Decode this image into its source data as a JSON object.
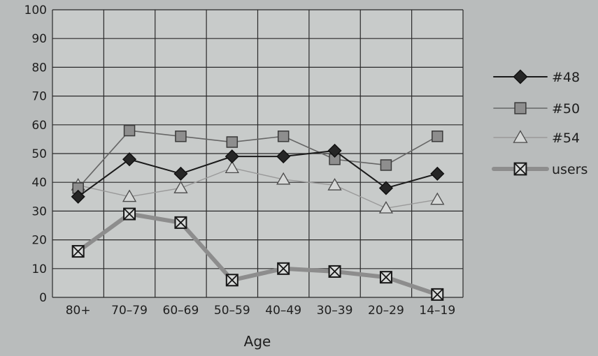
{
  "chart_data": {
    "type": "line",
    "title": "",
    "xlabel": "Age",
    "ylabel": "",
    "categories": [
      "80+",
      "70–79",
      "60–69",
      "50–59",
      "40–49",
      "30–39",
      "20–29",
      "14–19"
    ],
    "ylim": [
      0,
      100
    ],
    "yticks": [
      0,
      10,
      20,
      30,
      40,
      50,
      60,
      70,
      80,
      90,
      100
    ],
    "grid": true,
    "legend_position": "right",
    "series": [
      {
        "name": "#48",
        "marker": "diamond",
        "color": "#1a1a1a",
        "values": [
          35,
          48,
          43,
          49,
          49,
          51,
          38,
          43
        ]
      },
      {
        "name": "#50",
        "marker": "square",
        "color": "#6e6e6e",
        "values": [
          38,
          58,
          56,
          54,
          56,
          48,
          46,
          56
        ]
      },
      {
        "name": "#54",
        "marker": "triangle",
        "color": "#9a9a9a",
        "values": [
          39,
          35,
          38,
          45,
          41,
          39,
          31,
          34
        ]
      },
      {
        "name": "users",
        "marker": "crossed-square",
        "color": "#8d8d8d",
        "values": [
          16,
          29,
          26,
          6,
          10,
          9,
          7,
          1
        ]
      }
    ]
  }
}
